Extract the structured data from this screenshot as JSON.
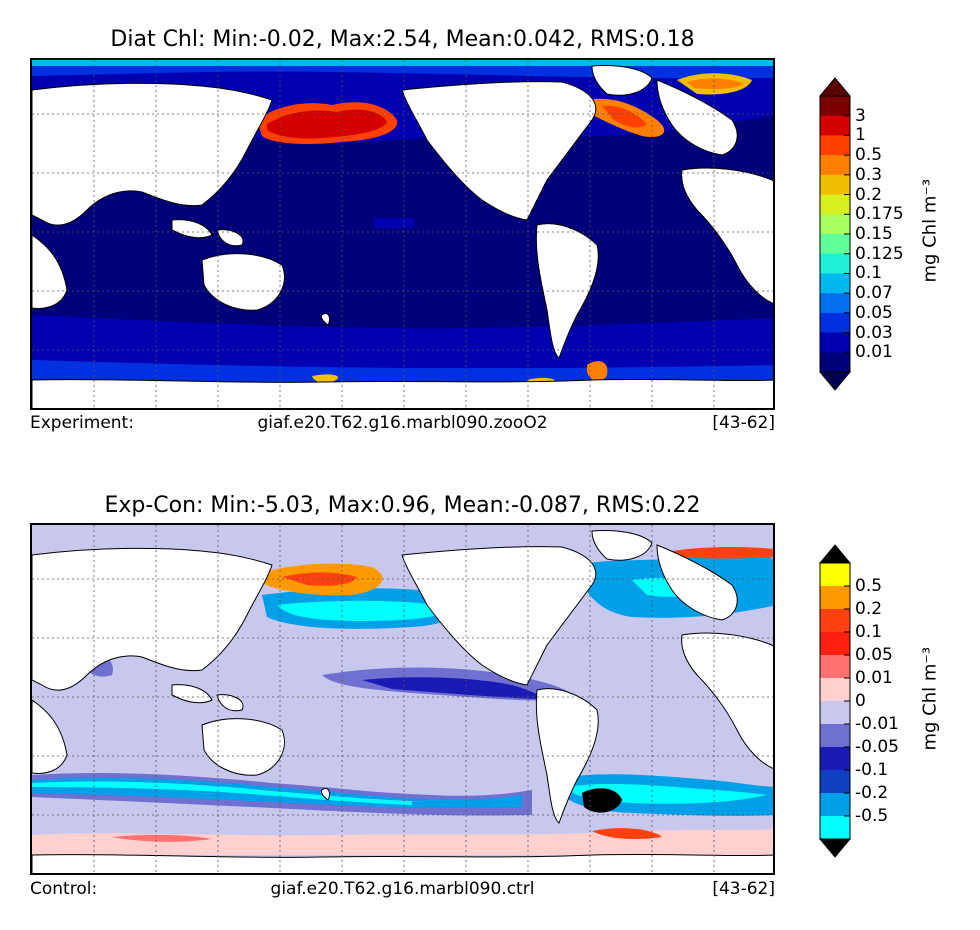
{
  "panels": [
    {
      "title": "Diat Chl: Min:-0.02, Max:2.54, Mean:0.042, RMS:0.18",
      "info_label": "Experiment:",
      "case": "giaf.e20.T62.g16.marbl090.zooO2",
      "years": "[43-62]",
      "colorbar": {
        "units": "mg Chl m⁻³",
        "levels": [
          "3",
          "1",
          "0.5",
          "0.3",
          "0.2",
          "0.175",
          "0.15",
          "0.125",
          "0.1",
          "0.07",
          "0.05",
          "0.03",
          "0.01"
        ],
        "colors": [
          "#7a0000",
          "#d40000",
          "#ff4000",
          "#ff8000",
          "#f0c000",
          "#d8f020",
          "#a8ff60",
          "#60ff9a",
          "#20f0d8",
          "#00b8f0",
          "#0070f0",
          "#0030e0",
          "#0000b0",
          "#00007a"
        ],
        "over_color": "#5a0000",
        "under_color": "#000050"
      }
    },
    {
      "title": "Exp-Con: Min:-5.03, Max:0.96, Mean:-0.087, RMS:0.22",
      "info_label": "Control:",
      "case": "giaf.e20.T62.g16.marbl090.ctrl",
      "years": "[43-62]",
      "colorbar": {
        "units": "mg Chl m⁻³",
        "levels": [
          "0.5",
          "0.2",
          "0.1",
          "0.05",
          "0.01",
          "0",
          "-0.01",
          "-0.05",
          "-0.1",
          "-0.2",
          "-0.5"
        ],
        "colors": [
          "#ffff00",
          "#ff9900",
          "#ff4010",
          "#ff2010",
          "#ff7070",
          "#ffd0d0",
          "#c8c8ee",
          "#7070d0",
          "#1a1ab4",
          "#1040c0",
          "#00a0e8",
          "#00ffff"
        ],
        "over_color": "#000000",
        "under_color": "#000000"
      }
    }
  ]
}
